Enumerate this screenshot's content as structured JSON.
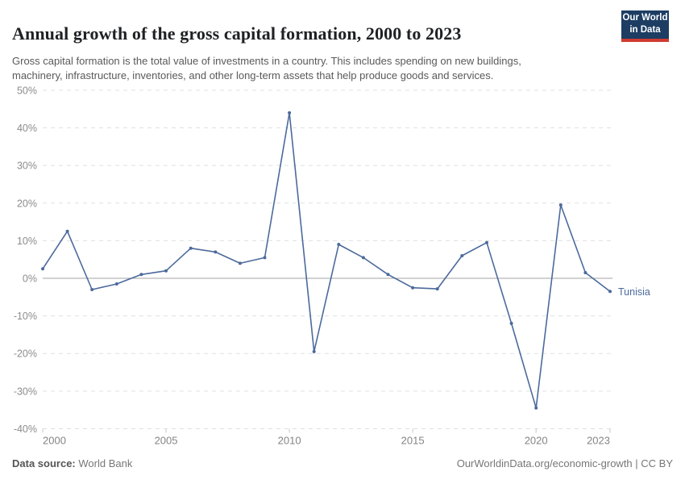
{
  "header": {
    "title": "Annual growth of the gross capital formation, 2000 to 2023",
    "subtitle_line1": "Gross capital formation is the total value of investments in a country. This includes spending on new buildings,",
    "subtitle_line2": "machinery, infrastructure, inventories, and other long-term assets that help produce goods and services."
  },
  "logo": {
    "line1": "Our World",
    "line2": "in Data",
    "bg_color": "#1d3d63",
    "accent_color": "#cf3b31"
  },
  "chart_data": {
    "type": "line",
    "title": "Annual growth of the gross capital formation, 2000 to 2023",
    "x": [
      2000,
      2001,
      2002,
      2003,
      2004,
      2005,
      2006,
      2007,
      2008,
      2009,
      2010,
      2011,
      2012,
      2013,
      2014,
      2015,
      2016,
      2017,
      2018,
      2019,
      2020,
      2021,
      2022,
      2023
    ],
    "series": [
      {
        "name": "Tunisia",
        "color": "#4c6a9c",
        "values": [
          2.5,
          12.5,
          -3,
          -1.5,
          1,
          2,
          8,
          7,
          4,
          5.5,
          44,
          -19.5,
          9,
          5.5,
          1,
          -2.5,
          -2.8,
          6,
          9.5,
          -12,
          -34.5,
          19.5,
          1.5,
          -3.5
        ]
      }
    ],
    "unit": "%",
    "ylim": [
      -40,
      50
    ],
    "yticks": [
      50,
      40,
      30,
      20,
      10,
      0,
      -10,
      -20,
      -30,
      -40
    ],
    "xticks": [
      2000,
      2005,
      2010,
      2015,
      2020,
      2023
    ],
    "grid": "dashed horizontal, solid zero line",
    "legend_position": "end-of-line label"
  },
  "footer": {
    "datasource_label": "Data source:",
    "datasource_value": "World Bank",
    "right_text": "OurWorldinData.org/economic-growth | CC BY"
  }
}
